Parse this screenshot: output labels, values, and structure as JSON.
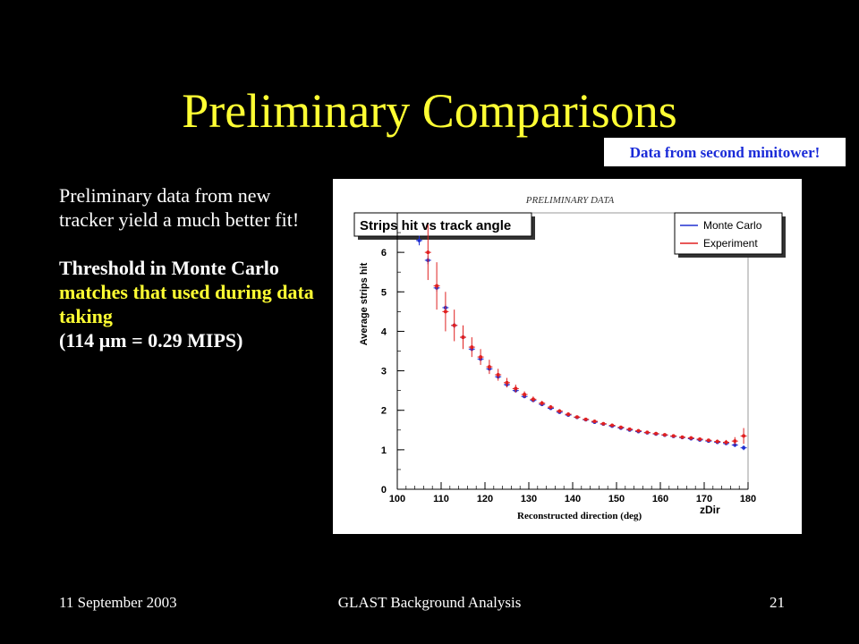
{
  "slide": {
    "title": "Preliminary Comparisons",
    "note": "Data from second minitower!",
    "body": {
      "para1": "Preliminary data from new tracker yield a much better fit!",
      "para2_white": "Threshold in Monte Carlo ",
      "para2_yellow": "matches that used during data taking",
      "para3": "(114 µm = 0.29 MIPS)"
    },
    "footer": {
      "date": "11 September 2003",
      "center": "GLAST Background Analysis",
      "page": "21"
    }
  },
  "chart_data": {
    "type": "scatter",
    "title": "Strips hit vs track angle",
    "watermark": "PRELIMINARY DATA",
    "xlabel": "Reconstructed direction (deg)",
    "xlabel_tag": "zDir",
    "ylabel": "Average strips hit",
    "xlim": [
      100,
      180
    ],
    "ylim": [
      0,
      7
    ],
    "xticks": [
      100,
      110,
      120,
      130,
      140,
      150,
      160,
      170,
      180
    ],
    "yticks": [
      0,
      1,
      2,
      3,
      4,
      5,
      6
    ],
    "legend_position": "top-right",
    "series": [
      {
        "name": "Monte Carlo",
        "color": "#2030d0",
        "x": [
          105,
          107,
          109,
          111,
          113,
          115,
          117,
          119,
          121,
          123,
          125,
          127,
          129,
          131,
          133,
          135,
          137,
          139,
          141,
          143,
          145,
          147,
          149,
          151,
          153,
          155,
          157,
          159,
          161,
          163,
          165,
          167,
          169,
          171,
          173,
          175,
          177,
          179
        ],
        "y": [
          6.3,
          5.8,
          5.1,
          4.6,
          4.15,
          3.85,
          3.55,
          3.3,
          3.05,
          2.85,
          2.65,
          2.5,
          2.35,
          2.25,
          2.15,
          2.05,
          1.95,
          1.88,
          1.82,
          1.76,
          1.7,
          1.65,
          1.6,
          1.55,
          1.5,
          1.46,
          1.43,
          1.4,
          1.37,
          1.34,
          1.31,
          1.28,
          1.25,
          1.22,
          1.19,
          1.16,
          1.12,
          1.05
        ],
        "err": [
          0.12,
          0.1,
          0.09,
          0.08,
          0.07,
          0.06,
          0.06,
          0.05,
          0.05,
          0.05,
          0.04,
          0.04,
          0.04,
          0.04,
          0.04,
          0.03,
          0.03,
          0.03,
          0.03,
          0.03,
          0.03,
          0.03,
          0.03,
          0.03,
          0.03,
          0.03,
          0.03,
          0.03,
          0.03,
          0.03,
          0.03,
          0.03,
          0.03,
          0.03,
          0.04,
          0.04,
          0.05,
          0.06
        ]
      },
      {
        "name": "Experiment",
        "color": "#e02020",
        "x": [
          107,
          109,
          111,
          113,
          115,
          117,
          119,
          121,
          123,
          125,
          127,
          129,
          131,
          133,
          135,
          137,
          139,
          141,
          143,
          145,
          147,
          149,
          151,
          153,
          155,
          157,
          159,
          161,
          163,
          165,
          167,
          169,
          171,
          173,
          175,
          177,
          179
        ],
        "y": [
          6.0,
          5.15,
          4.5,
          4.15,
          3.85,
          3.6,
          3.35,
          3.1,
          2.9,
          2.7,
          2.55,
          2.4,
          2.28,
          2.18,
          2.08,
          1.98,
          1.9,
          1.83,
          1.77,
          1.72,
          1.66,
          1.62,
          1.57,
          1.52,
          1.48,
          1.44,
          1.41,
          1.38,
          1.35,
          1.32,
          1.3,
          1.27,
          1.24,
          1.21,
          1.19,
          1.22,
          1.35
        ],
        "err": [
          0.7,
          0.6,
          0.5,
          0.4,
          0.3,
          0.25,
          0.2,
          0.18,
          0.15,
          0.12,
          0.1,
          0.08,
          0.07,
          0.06,
          0.05,
          0.05,
          0.05,
          0.04,
          0.04,
          0.04,
          0.04,
          0.04,
          0.04,
          0.04,
          0.04,
          0.04,
          0.04,
          0.04,
          0.04,
          0.04,
          0.04,
          0.04,
          0.04,
          0.05,
          0.06,
          0.1,
          0.2
        ]
      }
    ]
  }
}
